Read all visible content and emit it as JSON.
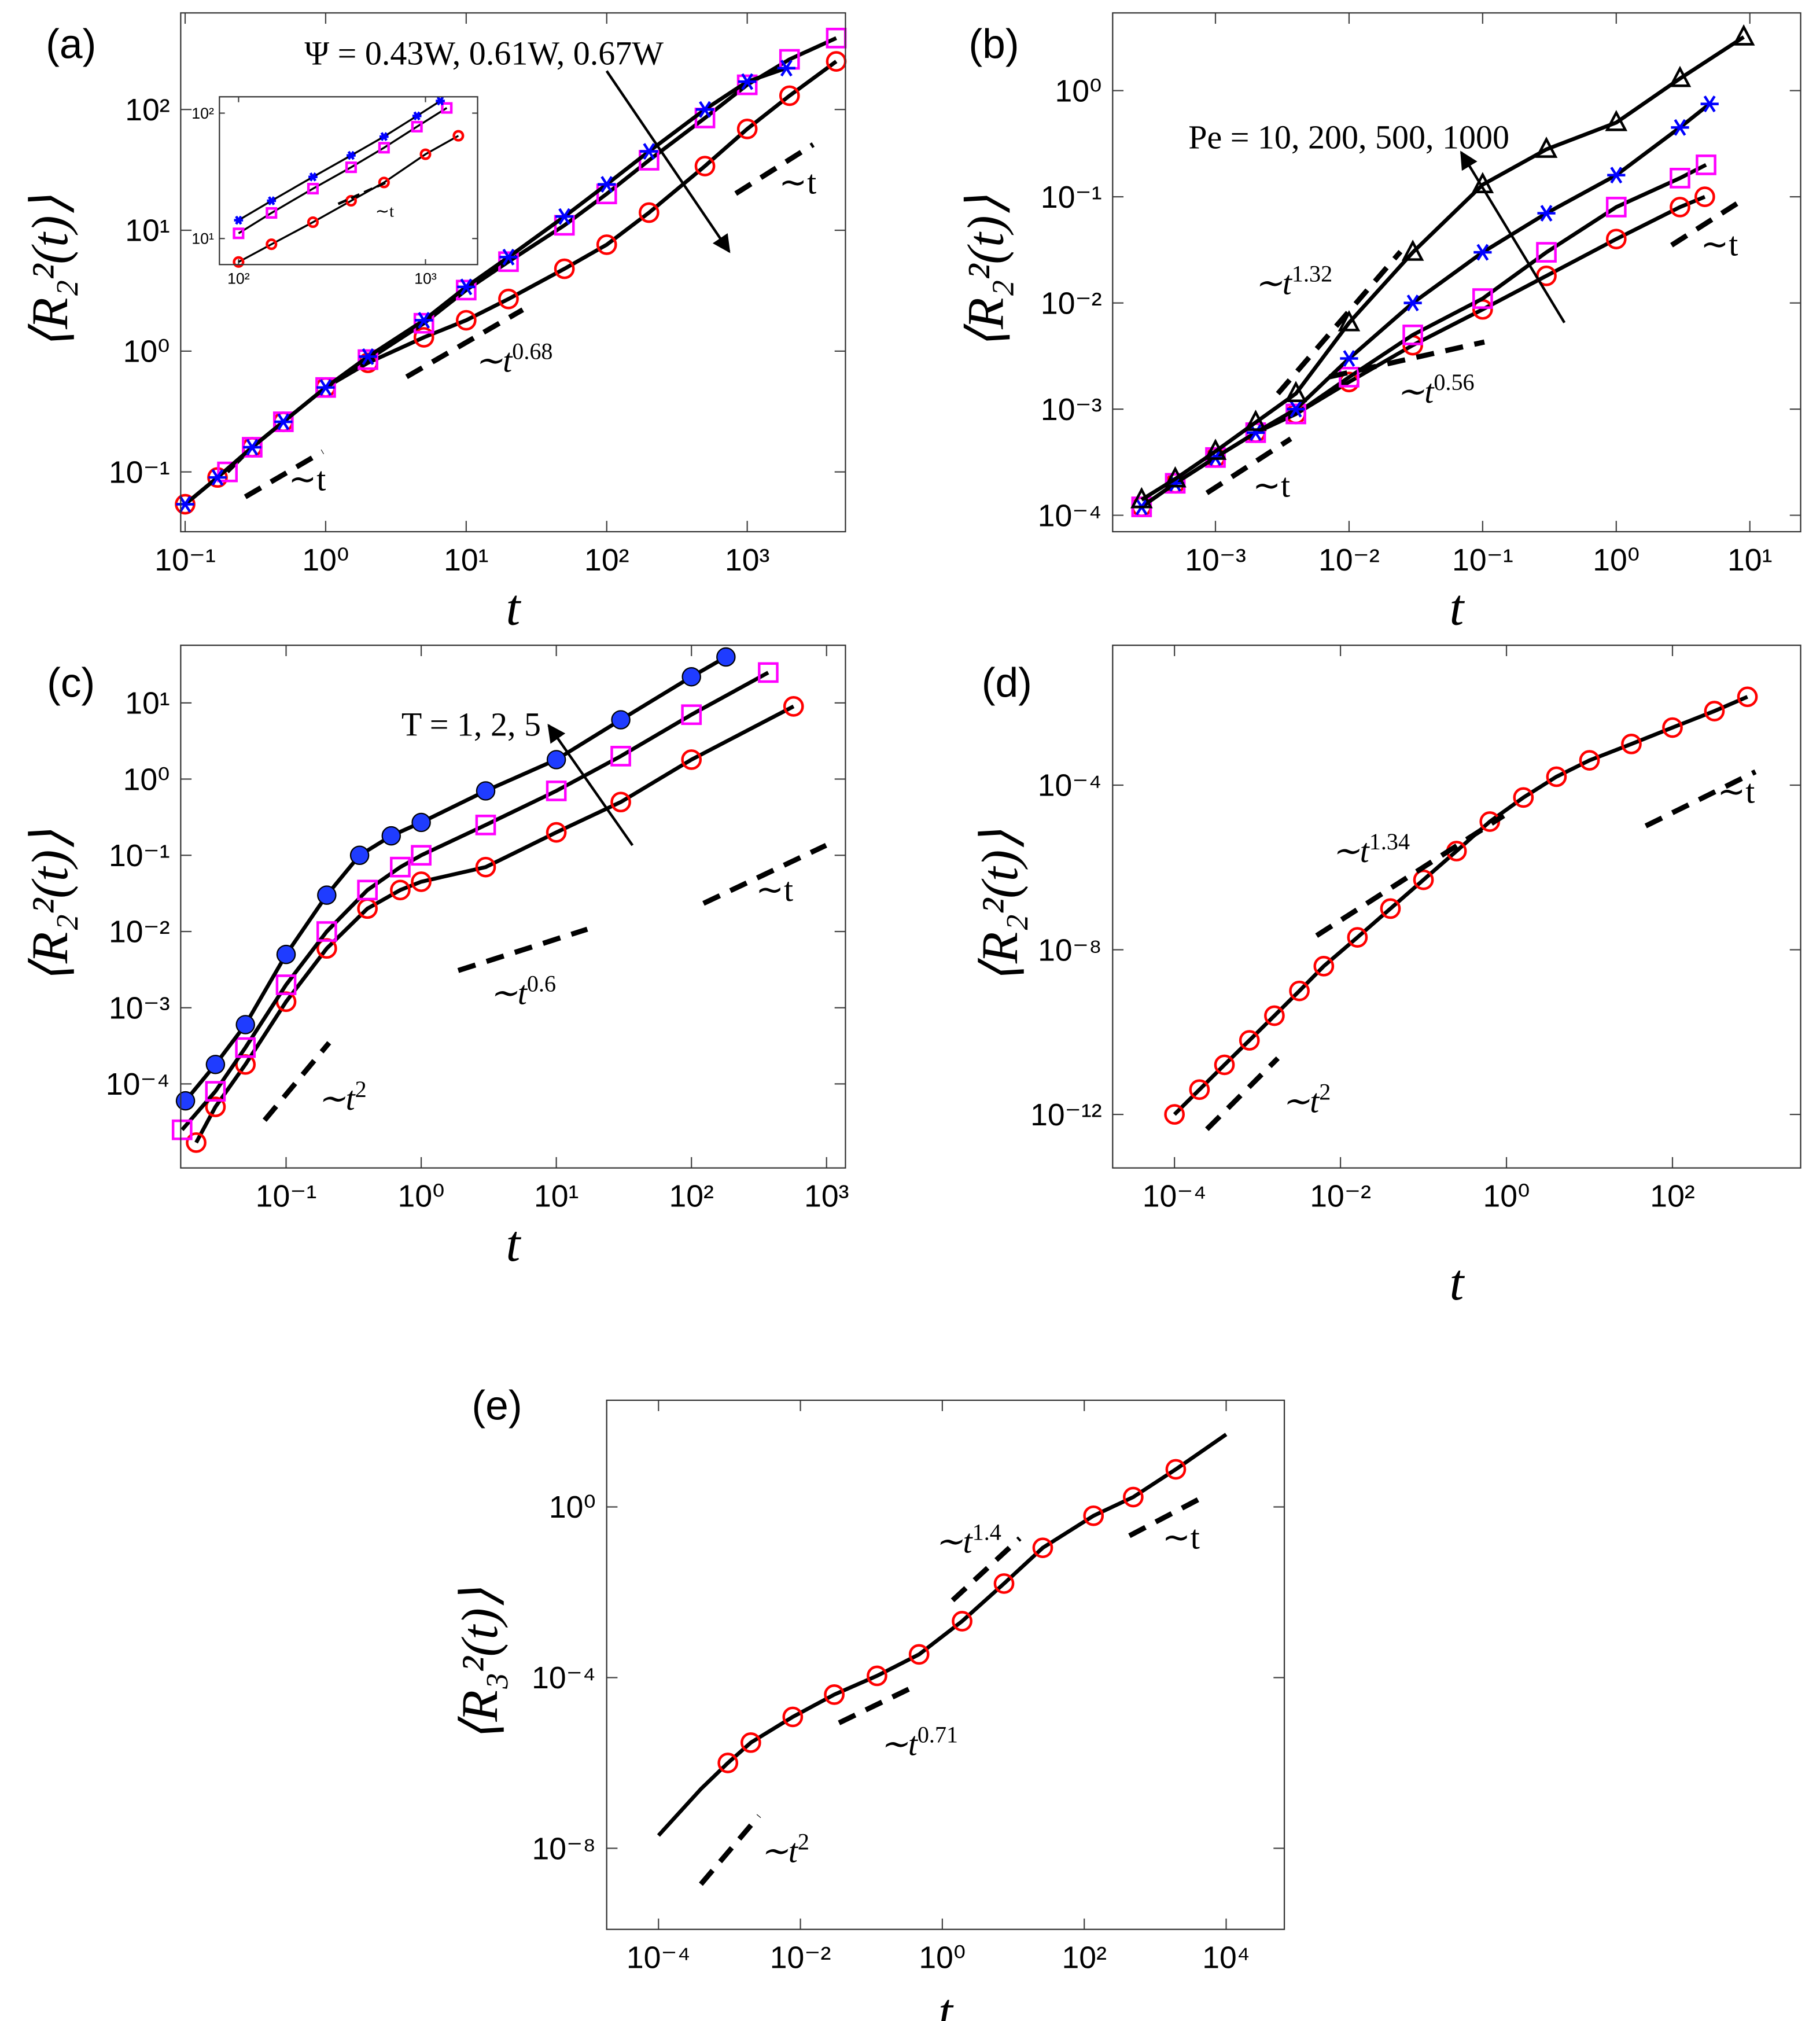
{
  "chart_data": [
    {
      "type": "scatter",
      "panel_label": "(a)",
      "xlabel": "t",
      "ylabel": "⟨R₂²(t)⟩",
      "xscale": "log",
      "yscale": "log",
      "line_color": "#000000",
      "xlim": [
        0.093,
        5000
      ],
      "ylim": [
        0.032,
        630
      ],
      "xticks": [
        {
          "value": 0.1,
          "label": "10⁻¹"
        },
        {
          "value": 1,
          "label": "10⁰"
        },
        {
          "value": 10,
          "label": "10¹"
        },
        {
          "value": 100,
          "label": "10²"
        },
        {
          "value": 1000,
          "label": "10³"
        }
      ],
      "yticks": [
        {
          "value": 0.1,
          "label": "10⁻¹"
        },
        {
          "value": 1,
          "label": "10⁰"
        },
        {
          "value": 10,
          "label": "10¹"
        },
        {
          "value": 100,
          "label": "10²"
        }
      ],
      "annotations": [
        {
          "text": "Ψ = 0.43W, 0.61W, 0.67W"
        },
        {
          "text": "∼t"
        },
        {
          "text": "∼t",
          "sup": "0.68"
        },
        {
          "text": "∼t"
        }
      ],
      "series": [
        {
          "color": "#ff0000",
          "marker": "circle",
          "line": true,
          "x": [
            0.1,
            0.17,
            0.3,
            0.5,
            1,
            2,
            5,
            10,
            20,
            50,
            100,
            200,
            500,
            1000,
            2000,
            4300
          ],
          "values": [
            0.054,
            0.09,
            0.16,
            0.26,
            0.5,
            0.8,
            1.3,
            1.8,
            2.7,
            4.8,
            7.6,
            14,
            34,
            69,
            130,
            250
          ]
        },
        {
          "color": "#ff00ff",
          "marker": "square",
          "line": true,
          "x": [
            0.2,
            0.3,
            0.5,
            1,
            2,
            5,
            10,
            20,
            50,
            100,
            200,
            500,
            1000,
            2000,
            4300
          ],
          "values": [
            0.1,
            0.16,
            0.26,
            0.5,
            0.85,
            1.7,
            3.2,
            5.5,
            11,
            20,
            38,
            85,
            160,
            260,
            390
          ]
        },
        {
          "color": "#0000ff",
          "marker": "star",
          "line": true,
          "x": [
            0.1,
            0.17,
            0.3,
            0.5,
            1,
            2,
            5,
            10,
            20,
            50,
            100,
            200,
            500,
            1000,
            1900
          ],
          "values": [
            0.054,
            0.09,
            0.16,
            0.26,
            0.5,
            0.9,
            1.8,
            3.4,
            6,
            13,
            24,
            45,
            100,
            170,
            220
          ]
        }
      ]
    },
    {
      "type": "scatter",
      "xscale": "log",
      "yscale": "log",
      "line_color": "#000000",
      "xlim": [
        79,
        1900
      ],
      "ylim": [
        6.2,
        135
      ],
      "xticks": [
        {
          "value": 100,
          "label": "10²"
        },
        {
          "value": 1000,
          "label": "10³"
        }
      ],
      "yticks": [
        {
          "value": 10,
          "label": "10¹"
        },
        {
          "value": 100,
          "label": "10²"
        }
      ],
      "annotations": [
        {
          "text": "∼t"
        }
      ],
      "series": [
        {
          "color": "#ff0000",
          "marker": "circle",
          "line": true,
          "x": [
            100,
            150,
            250,
            400,
            600,
            1000,
            1500
          ],
          "values": [
            6.5,
            9,
            13.5,
            20,
            28,
            47,
            66
          ]
        },
        {
          "color": "#ff00ff",
          "marker": "square",
          "line": true,
          "x": [
            100,
            150,
            250,
            400,
            600,
            900,
            1300
          ],
          "values": [
            11,
            16,
            25,
            37,
            53,
            78,
            110
          ]
        },
        {
          "color": "#0000ff",
          "marker": "star",
          "line": true,
          "x": [
            100,
            150,
            250,
            400,
            600,
            900,
            1200
          ],
          "values": [
            14,
            20,
            31,
            46,
            65,
            95,
            125
          ]
        }
      ]
    },
    {
      "type": "scatter",
      "panel_label": "(b)",
      "xlabel": "t",
      "ylabel": "⟨R₂²(t)⟩",
      "xscale": "log",
      "yscale": "log",
      "line_color": "#000000",
      "xlim": [
        0.00017,
        24
      ],
      "ylim": [
        7e-05,
        5.4
      ],
      "xticks": [
        {
          "value": 0.001,
          "label": "10⁻³"
        },
        {
          "value": 0.01,
          "label": "10⁻²"
        },
        {
          "value": 0.1,
          "label": "10⁻¹"
        },
        {
          "value": 1,
          "label": "10⁰"
        },
        {
          "value": 10,
          "label": "10¹"
        }
      ],
      "yticks": [
        {
          "value": 0.0001,
          "label": "10⁻⁴"
        },
        {
          "value": 0.001,
          "label": "10⁻³"
        },
        {
          "value": 0.01,
          "label": "10⁻²"
        },
        {
          "value": 0.1,
          "label": "10⁻¹"
        },
        {
          "value": 1,
          "label": "10⁰"
        }
      ],
      "annotations": [
        {
          "text": "Pe = 10, 200, 500, 1000"
        },
        {
          "text": "∼t",
          "sup": "1.32"
        },
        {
          "text": "∼t",
          "sup": "0.56"
        },
        {
          "text": "∼t"
        },
        {
          "text": "∼t"
        }
      ],
      "series": [
        {
          "color": "#ff0000",
          "marker": "circle",
          "line": true,
          "x": [
            0.00028,
            0.0005,
            0.001,
            0.002,
            0.004,
            0.01,
            0.03,
            0.1,
            0.3,
            1,
            3,
            4.6
          ],
          "values": [
            0.00012,
            0.0002,
            0.00035,
            0.0006,
            0.0009,
            0.0018,
            0.004,
            0.0087,
            0.018,
            0.04,
            0.08,
            0.1
          ]
        },
        {
          "color": "#ff00ff",
          "marker": "square",
          "line": true,
          "x": [
            0.00028,
            0.0005,
            0.001,
            0.002,
            0.004,
            0.01,
            0.03,
            0.1,
            0.3,
            1,
            3,
            4.7
          ],
          "values": [
            0.00012,
            0.0002,
            0.00035,
            0.0006,
            0.0009,
            0.002,
            0.005,
            0.011,
            0.03,
            0.08,
            0.15,
            0.2
          ]
        },
        {
          "color": "#0000ff",
          "marker": "star",
          "line": true,
          "x": [
            0.00028,
            0.0005,
            0.001,
            0.002,
            0.004,
            0.01,
            0.03,
            0.1,
            0.3,
            1,
            3,
            5
          ],
          "values": [
            0.00012,
            0.0002,
            0.00035,
            0.0006,
            0.001,
            0.003,
            0.01,
            0.03,
            0.07,
            0.16,
            0.45,
            0.75
          ]
        },
        {
          "color": "#000000",
          "marker": "triangle",
          "line": true,
          "x": [
            0.00028,
            0.0005,
            0.001,
            0.002,
            0.004,
            0.01,
            0.03,
            0.1,
            0.3,
            1,
            3,
            9
          ],
          "values": [
            0.00014,
            0.00022,
            0.0004,
            0.00075,
            0.0014,
            0.0065,
            0.03,
            0.13,
            0.28,
            0.5,
            1.3,
            3.2
          ]
        }
      ]
    },
    {
      "type": "scatter",
      "panel_label": "(c)",
      "xlabel": "t",
      "ylabel": "⟨R₂²(t)⟩",
      "xscale": "log",
      "yscale": "log",
      "line_color": "#000000",
      "xlim": [
        0.0166,
        1380
      ],
      "ylim": [
        7.9e-06,
        57
      ],
      "xticks": [
        {
          "value": 0.1,
          "label": "10⁻¹"
        },
        {
          "value": 1,
          "label": "10⁰"
        },
        {
          "value": 10,
          "label": "10¹"
        },
        {
          "value": 100,
          "label": "10²"
        },
        {
          "value": 1000,
          "label": "10³"
        }
      ],
      "yticks": [
        {
          "value": 0.0001,
          "label": "10⁻⁴"
        },
        {
          "value": 0.001,
          "label": "10⁻³"
        },
        {
          "value": 0.01,
          "label": "10⁻²"
        },
        {
          "value": 0.1,
          "label": "10⁻¹"
        },
        {
          "value": 1,
          "label": "10⁰"
        },
        {
          "value": 10,
          "label": "10¹"
        }
      ],
      "annotations": [
        {
          "text": "T = 1, 2, 5"
        },
        {
          "text": "∼t",
          "sup": "0.6"
        },
        {
          "text": "∼t",
          "sup": "2"
        },
        {
          "text": "∼t"
        }
      ],
      "series": [
        {
          "color": "#ff0000",
          "marker": "circle",
          "line": true,
          "x": [
            0.0216,
            0.03,
            0.05,
            0.1,
            0.2,
            0.4,
            0.7,
            1,
            3,
            10,
            30,
            100,
            570
          ],
          "values": [
            1.7e-05,
            5e-05,
            0.00018,
            0.0012,
            0.006,
            0.02,
            0.035,
            0.045,
            0.07,
            0.2,
            0.5,
            1.8,
            9
          ]
        },
        {
          "color": "#ff00ff",
          "marker": "square",
          "line": true,
          "x": [
            0.017,
            0.03,
            0.05,
            0.1,
            0.2,
            0.4,
            0.7,
            1,
            3,
            10,
            30,
            100,
            370
          ],
          "values": [
            2.5e-05,
            8e-05,
            0.0003,
            0.002,
            0.01,
            0.035,
            0.07,
            0.1,
            0.25,
            0.7,
            2,
            7,
            25
          ]
        },
        {
          "color": "#1f3cff",
          "marker": "dot",
          "line": true,
          "x": [
            0.018,
            0.03,
            0.05,
            0.1,
            0.2,
            0.35,
            0.6,
            1,
            3,
            10,
            30,
            100,
            180
          ],
          "values": [
            6e-05,
            0.00018,
            0.0006,
            0.005,
            0.03,
            0.1,
            0.18,
            0.27,
            0.7,
            1.8,
            6,
            22,
            40
          ]
        }
      ]
    },
    {
      "type": "scatter",
      "panel_label": "(d)",
      "xlabel": "t",
      "ylabel": "⟨R₂²(t)⟩",
      "xscale": "log",
      "yscale": "log",
      "line_color": "#000000",
      "xlim": [
        1.8e-05,
        3500
      ],
      "ylim": [
        5e-14,
        0.25
      ],
      "xticks": [
        {
          "value": 0.0001,
          "label": "10⁻⁴"
        },
        {
          "value": 0.01,
          "label": "10⁻²"
        },
        {
          "value": 1,
          "label": "10⁰"
        },
        {
          "value": 100,
          "label": "10²"
        }
      ],
      "yticks": [
        {
          "value": 1e-12,
          "label": "10⁻¹²"
        },
        {
          "value": 1e-08,
          "label": "10⁻⁸"
        },
        {
          "value": 0.0001,
          "label": "10⁻⁴"
        }
      ],
      "annotations": [
        {
          "text": "∼t",
          "sup": "1.34"
        },
        {
          "text": "∼t",
          "sup": "2"
        },
        {
          "text": "∼t"
        }
      ],
      "series": [
        {
          "color": "#ff0000",
          "marker": "circle",
          "line": true,
          "x": [
            0.0001,
            0.0002,
            0.0004,
            0.0008,
            0.0016,
            0.0032,
            0.0063,
            0.016,
            0.04,
            0.1,
            0.25,
            0.63,
            1.6,
            4,
            10,
            32,
            100,
            320,
            800
          ],
          "values": [
            1e-12,
            4e-12,
            1.6e-11,
            6.3e-11,
            2.5e-10,
            1e-09,
            4e-09,
            2e-08,
            1e-07,
            5e-07,
            2.5e-06,
            1.3e-05,
            5e-05,
            0.00016,
            0.0004,
            0.001,
            0.0025,
            0.0063,
            0.014
          ]
        }
      ]
    },
    {
      "type": "scatter",
      "panel_label": "(e)",
      "xlabel": "t",
      "ylabel": "⟨R₃²(t)⟩",
      "xscale": "log",
      "yscale": "log",
      "line_color": "#000000",
      "xlim": [
        1.86e-05,
        66000
      ],
      "ylim": [
        1.26e-10,
        316
      ],
      "xticks": [
        {
          "value": 0.0001,
          "label": "10⁻⁴"
        },
        {
          "value": 0.01,
          "label": "10⁻²"
        },
        {
          "value": 1,
          "label": "10⁰"
        },
        {
          "value": 100,
          "label": "10²"
        },
        {
          "value": 10000,
          "label": "10⁴"
        }
      ],
      "yticks": [
        {
          "value": 1e-08,
          "label": "10⁻⁸"
        },
        {
          "value": 0.0001,
          "label": "10⁻⁴"
        },
        {
          "value": 1,
          "label": "10⁰"
        }
      ],
      "annotations": [
        {
          "text": "∼t",
          "sup": "1.4"
        },
        {
          "text": "∼t",
          "sup": "0.71"
        },
        {
          "text": "∼t",
          "sup": "2"
        },
        {
          "text": "∼t"
        }
      ],
      "series": [
        {
          "line": true,
          "x": [
            0.0001,
            0.0004,
            0.00095,
            0.002,
            0.0078,
            0.03,
            0.12,
            0.47,
            1.9,
            7.4,
            26,
            135,
            490,
            1950,
            10000
          ],
          "values": [
            2e-08,
            2.5e-07,
            1e-06,
            3e-06,
            1.2e-05,
            4e-05,
            0.00011,
            0.00035,
            0.0021,
            0.016,
            0.11,
            0.62,
            1.7,
            7.6,
            50
          ]
        },
        {
          "color": "#ff0000",
          "marker": "circle",
          "x": [
            0.00095,
            0.002,
            0.0078,
            0.03,
            0.12,
            0.47,
            1.9,
            7.4,
            26,
            135,
            490,
            1950
          ],
          "values": [
            1e-06,
            3e-06,
            1.2e-05,
            4e-05,
            0.00011,
            0.00035,
            0.0021,
            0.016,
            0.11,
            0.62,
            1.7,
            7.6
          ]
        }
      ]
    }
  ]
}
